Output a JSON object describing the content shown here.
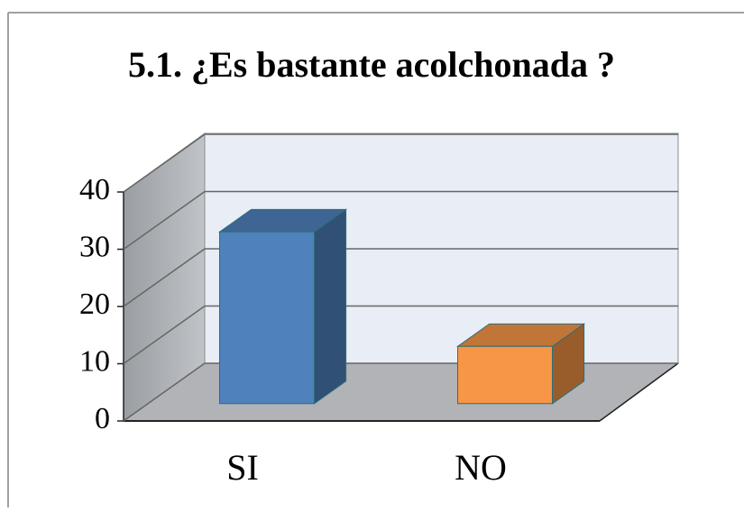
{
  "chart_data": {
    "type": "bar",
    "title": "5.1. ¿Es bastante acolchonada ?",
    "categories": [
      "SI",
      "NO"
    ],
    "values": [
      30,
      10
    ],
    "colors": [
      "#4f81bd",
      "#f79646"
    ],
    "ylim": [
      0,
      40
    ],
    "yticks": [
      0,
      10,
      20,
      30,
      40
    ],
    "grid": true
  }
}
